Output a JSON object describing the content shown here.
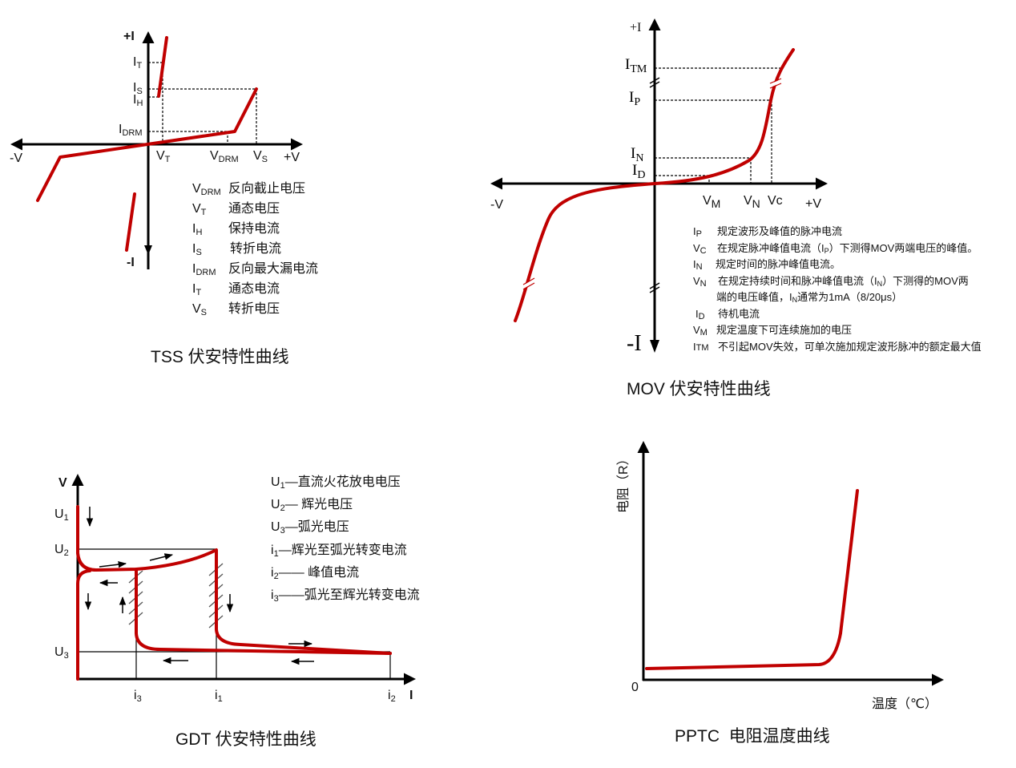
{
  "colors": {
    "curve": "#c00000",
    "axis": "#000000"
  },
  "tss": {
    "title": "TSS 伏安特性曲线",
    "axis": {
      "pos_i": "+I",
      "neg_i": "-I",
      "neg_v": "-V",
      "pos_v": "+V"
    },
    "labels": {
      "it": {
        "t": "I",
        "s": "T"
      },
      "is": {
        "t": "I",
        "s": "S"
      },
      "ih": {
        "t": "I",
        "s": "H"
      },
      "idrm": {
        "t": "I",
        "s": "DRM"
      },
      "vt": {
        "t": "V",
        "s": "T"
      },
      "vdrm": {
        "t": "V",
        "s": "DRM"
      },
      "vs": {
        "t": "V",
        "s": "S"
      }
    },
    "legend": [
      {
        "t": "V",
        "s": "DRM",
        "d": "反向截止电压"
      },
      {
        "t": "V",
        "s": "T",
        "d": "通态电压"
      },
      {
        "t": "I",
        "s": "H",
        "d": "保持电流"
      },
      {
        "t": "I",
        "s": "S",
        "d": "转折电流"
      },
      {
        "t": "I",
        "s": "DRM",
        "d": "反向最大漏电流"
      },
      {
        "t": "I",
        "s": "T",
        "d": "通态电流"
      },
      {
        "t": "V",
        "s": "S",
        "d": "转折电压"
      }
    ]
  },
  "mov": {
    "title": "MOV 伏安特性曲线",
    "axis": {
      "pos_i": "+I",
      "neg_i": "-I",
      "neg_v": "-V",
      "pos_v": "+V"
    },
    "labels": {
      "itm": {
        "t": "I",
        "s": "TM"
      },
      "ip": {
        "t": "I",
        "s": "P"
      },
      "in": {
        "t": "I",
        "s": "N"
      },
      "id": {
        "t": "I",
        "s": "D"
      },
      "vm": {
        "t": "V",
        "s": "M"
      },
      "vn": {
        "t": "V",
        "s": "N"
      },
      "vc": "Vc"
    },
    "legend": [
      {
        "t": "I",
        "s": "P",
        "d": "规定波形及峰值的脉冲电流"
      },
      {
        "t": "V",
        "s": "C",
        "d": "在规定脉冲峰值电流（I",
        "d_sub": "P",
        "d2": "）下测得MOV两端电压的峰值。"
      },
      {
        "t": "I",
        "s": "N",
        "d": "规定时间的脉冲峰值电流。"
      },
      {
        "t": "V",
        "s": "N",
        "d": "在规定持续时间和脉冲峰值电流（I",
        "d_sub": "N",
        "d2": "）下测得的MOV两"
      },
      {
        "d": "端的电压峰值，I",
        "d_sub": "N",
        "d2": "通常为1mA（8/20μs）"
      },
      {
        "t": "I",
        "s": "D",
        "d": "待机电流"
      },
      {
        "t": "V",
        "s": "M",
        "d": "规定温度下可连续施加的电压"
      },
      {
        "t": "I",
        "s": "TM",
        "d": "不引起MOV失效，可单次施加规定波形脉冲的额定最大值"
      }
    ]
  },
  "gdt": {
    "title": "GDT 伏安特性曲线",
    "axis": {
      "y": "V",
      "x": "I"
    },
    "labels": {
      "u1": {
        "t": "U",
        "s": "1"
      },
      "u2": {
        "t": "U",
        "s": "2"
      },
      "u3": {
        "t": "U",
        "s": "3"
      },
      "i1": {
        "t": "i",
        "s": "1"
      },
      "i2": {
        "t": "i",
        "s": "2"
      },
      "i3": {
        "t": "i",
        "s": "3"
      }
    },
    "legend": [
      {
        "t": "U",
        "s": "1",
        "d": "—直流火花放电电压"
      },
      {
        "t": "U",
        "s": "2",
        "d": "— 辉光电压"
      },
      {
        "t": "U",
        "s": "3",
        "d": "—弧光电压"
      },
      {
        "t": "i",
        "s": "1",
        "d": "—辉光至弧光转变电流"
      },
      {
        "t": "i",
        "s": "2",
        "d": "—— 峰值电流"
      },
      {
        "t": "i",
        "s": "3",
        "d": "——弧光至辉光转变电流"
      }
    ]
  },
  "pptc": {
    "title": "PPTC  电阻温度曲线",
    "ylabel": "电阻（R）",
    "xlabel": "温度（℃）",
    "origin": "0"
  }
}
